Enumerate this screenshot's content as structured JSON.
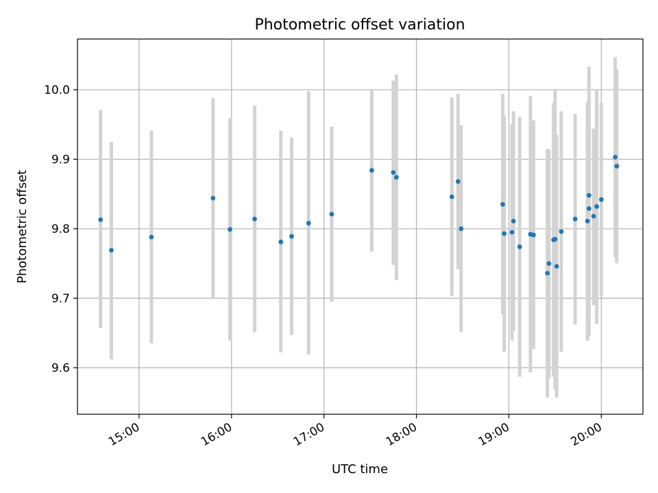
{
  "chart_data": {
    "type": "scatter",
    "title": "Photometric offset variation",
    "xlabel": "UTC time",
    "ylabel": "Photometric offset",
    "x_axis_type": "time",
    "xlim": [
      "14:20",
      "20:27"
    ],
    "ylim": [
      9.533,
      10.073
    ],
    "x_ticks": [
      "15:00",
      "16:00",
      "17:00",
      "18:00",
      "19:00",
      "20:00"
    ],
    "y_ticks": [
      "9.6",
      "9.7",
      "9.8",
      "9.9",
      "10.0"
    ],
    "grid": true,
    "colors": {
      "marker": "#1f77b4",
      "errorbar": "#d3d3d3",
      "grid": "#b0b0b0"
    },
    "points": [
      {
        "x": "14:35",
        "y": 9.813,
        "ylo": 9.657,
        "yhi": 9.971
      },
      {
        "x": "14:42",
        "y": 9.769,
        "ylo": 9.612,
        "yhi": 9.925
      },
      {
        "x": "15:08",
        "y": 9.788,
        "ylo": 9.635,
        "yhi": 9.941
      },
      {
        "x": "15:48",
        "y": 9.844,
        "ylo": 9.7,
        "yhi": 9.988
      },
      {
        "x": "15:59",
        "y": 9.799,
        "ylo": 9.639,
        "yhi": 9.959
      },
      {
        "x": "16:15",
        "y": 9.814,
        "ylo": 9.651,
        "yhi": 9.977
      },
      {
        "x": "16:32",
        "y": 9.781,
        "ylo": 9.622,
        "yhi": 9.941
      },
      {
        "x": "16:39",
        "y": 9.789,
        "ylo": 9.647,
        "yhi": 9.931
      },
      {
        "x": "16:50",
        "y": 9.808,
        "ylo": 9.619,
        "yhi": 9.998
      },
      {
        "x": "17:05",
        "y": 9.821,
        "ylo": 9.695,
        "yhi": 9.947
      },
      {
        "x": "17:31",
        "y": 9.884,
        "ylo": 9.767,
        "yhi": 10.0
      },
      {
        "x": "17:45",
        "y": 9.881,
        "ylo": 9.748,
        "yhi": 10.013
      },
      {
        "x": "17:47",
        "y": 9.874,
        "ylo": 9.726,
        "yhi": 10.022
      },
      {
        "x": "18:23",
        "y": 9.846,
        "ylo": 9.703,
        "yhi": 9.989
      },
      {
        "x": "18:27",
        "y": 9.868,
        "ylo": 9.742,
        "yhi": 9.994
      },
      {
        "x": "18:29",
        "y": 9.8,
        "ylo": 9.651,
        "yhi": 9.949
      },
      {
        "x": "18:56",
        "y": 9.835,
        "ylo": 9.677,
        "yhi": 9.994
      },
      {
        "x": "18:57",
        "y": 9.793,
        "ylo": 9.623,
        "yhi": 9.963
      },
      {
        "x": "19:02",
        "y": 9.795,
        "ylo": 9.639,
        "yhi": 9.951
      },
      {
        "x": "19:03",
        "y": 9.811,
        "ylo": 9.653,
        "yhi": 9.969
      },
      {
        "x": "19:07",
        "y": 9.774,
        "ylo": 9.587,
        "yhi": 9.961
      },
      {
        "x": "19:14",
        "y": 9.792,
        "ylo": 9.593,
        "yhi": 9.991
      },
      {
        "x": "19:16",
        "y": 9.791,
        "ylo": 9.627,
        "yhi": 9.956
      },
      {
        "x": "19:25",
        "y": 9.736,
        "ylo": 9.557,
        "yhi": 9.915
      },
      {
        "x": "19:26",
        "y": 9.75,
        "ylo": 9.585,
        "yhi": 9.914
      },
      {
        "x": "19:29",
        "y": 9.784,
        "ylo": 9.587,
        "yhi": 9.981
      },
      {
        "x": "19:30",
        "y": 9.785,
        "ylo": 9.569,
        "yhi": 10.001
      },
      {
        "x": "19:31",
        "y": 9.746,
        "ylo": 9.557,
        "yhi": 9.935
      },
      {
        "x": "19:34",
        "y": 9.796,
        "ylo": 9.623,
        "yhi": 9.969
      },
      {
        "x": "19:43",
        "y": 9.814,
        "ylo": 9.662,
        "yhi": 9.965
      },
      {
        "x": "19:51",
        "y": 9.811,
        "ylo": 9.639,
        "yhi": 9.982
      },
      {
        "x": "19:52",
        "y": 9.848,
        "ylo": 9.664,
        "yhi": 10.033
      },
      {
        "x": "19:52",
        "y": 9.829,
        "ylo": 9.645,
        "yhi": 10.014
      },
      {
        "x": "19:55",
        "y": 9.818,
        "ylo": 9.69,
        "yhi": 9.944
      },
      {
        "x": "19:57",
        "y": 9.832,
        "ylo": 9.663,
        "yhi": 10.001
      },
      {
        "x": "20:00",
        "y": 9.842,
        "ylo": 9.703,
        "yhi": 9.981
      },
      {
        "x": "20:09",
        "y": 9.903,
        "ylo": 9.759,
        "yhi": 10.047
      },
      {
        "x": "20:10",
        "y": 9.89,
        "ylo": 9.75,
        "yhi": 10.03
      }
    ]
  }
}
